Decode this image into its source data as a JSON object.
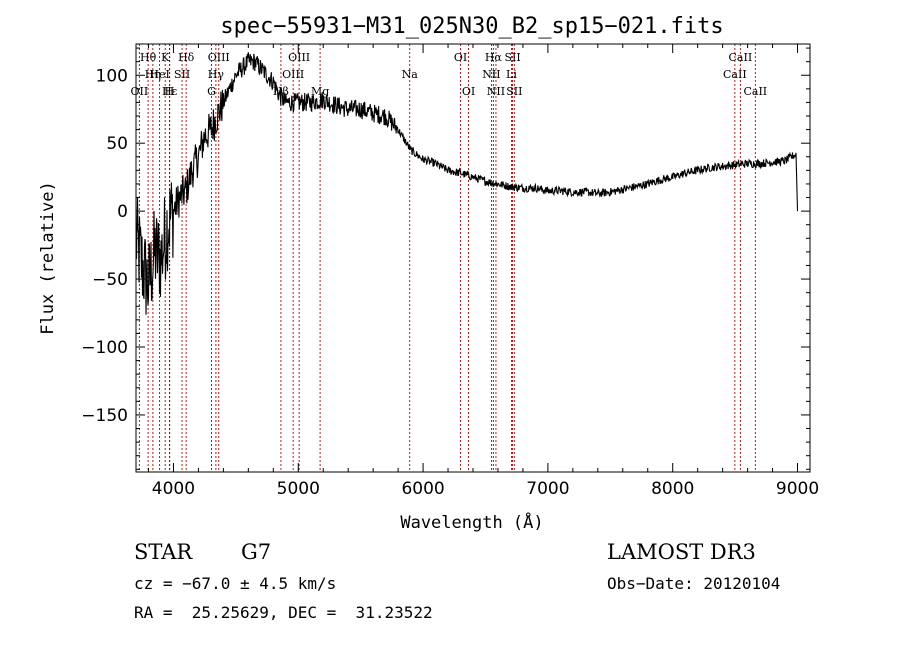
{
  "chart_data": {
    "type": "line",
    "title": "spec−55931−M31_025N30_B2_sp15−021.fits",
    "xlabel": "Wavelength (Å)",
    "ylabel": "Flux (relative)",
    "xlim": [
      3700,
      9100
    ],
    "ylim": [
      -192,
      123
    ],
    "xticks": [
      4000,
      5000,
      6000,
      7000,
      8000,
      9000
    ],
    "xtick_labels": [
      "4000",
      "5000",
      "6000",
      "7000",
      "8000",
      "9000"
    ],
    "yticks": [
      -150,
      -100,
      -50,
      0,
      50,
      100
    ],
    "ytick_labels": [
      "−150",
      "−100",
      "−50",
      "0",
      "50",
      "100"
    ],
    "spectrum_trend": {
      "x": [
        3700,
        3750,
        3800,
        3850,
        3900,
        3950,
        4000,
        4050,
        4100,
        4150,
        4200,
        4250,
        4300,
        4350,
        4400,
        4450,
        4500,
        4550,
        4600,
        4650,
        4700,
        4750,
        4800,
        4850,
        4900,
        4950,
        5000,
        5100,
        5200,
        5300,
        5400,
        5500,
        5600,
        5700,
        5800,
        5900,
        6000,
        6100,
        6200,
        6300,
        6400,
        6500,
        6600,
        6700,
        6800,
        6900,
        7000,
        7100,
        7200,
        7300,
        7400,
        7500,
        7600,
        7700,
        7800,
        7900,
        8000,
        8100,
        8200,
        8300,
        8400,
        8500,
        8600,
        8700,
        8800,
        8900,
        8950,
        8990
      ],
      "y": [
        -20,
        -40,
        -55,
        -30,
        -35,
        -10,
        0,
        10,
        15,
        30,
        40,
        55,
        60,
        70,
        80,
        90,
        100,
        105,
        110,
        110,
        105,
        100,
        95,
        85,
        80,
        80,
        80,
        80,
        82,
        78,
        75,
        75,
        72,
        70,
        60,
        45,
        38,
        35,
        30,
        28,
        25,
        22,
        20,
        18,
        17,
        17,
        15,
        15,
        14,
        14,
        13,
        14,
        16,
        18,
        20,
        23,
        25,
        28,
        30,
        32,
        33,
        34,
        35,
        35,
        36,
        37,
        40,
        42
      ]
    },
    "spectral_lines": [
      {
        "label": "Hθ",
        "x": 3797,
        "row": 0
      },
      {
        "label": "K",
        "x": 3934,
        "row": 0
      },
      {
        "label": "Hδ",
        "x": 4102,
        "row": 0
      },
      {
        "label": "OIII",
        "x": 4363,
        "row": 0
      },
      {
        "label": "OIII",
        "x": 5007,
        "row": 0
      },
      {
        "label": "OI",
        "x": 6300,
        "row": 0
      },
      {
        "label": "Hα",
        "x": 6563,
        "row": 0
      },
      {
        "label": "SII",
        "x": 6717,
        "row": 0
      },
      {
        "label": "CaII",
        "x": 8542,
        "row": 0
      },
      {
        "label": "Hη",
        "x": 3835,
        "row": 1
      },
      {
        "label": "HeI",
        "x": 3889,
        "row": 1
      },
      {
        "label": "SII",
        "x": 4069,
        "row": 1
      },
      {
        "label": "Hγ",
        "x": 4340,
        "row": 1
      },
      {
        "label": "OIII",
        "x": 4959,
        "row": 1
      },
      {
        "label": "Na",
        "x": 5893,
        "row": 1
      },
      {
        "label": "NII",
        "x": 6548,
        "row": 1
      },
      {
        "label": "Li",
        "x": 6708,
        "row": 1
      },
      {
        "label": "CaII",
        "x": 8498,
        "row": 1
      },
      {
        "label": "OII",
        "x": 3727,
        "row": 2
      },
      {
        "label": "Hε",
        "x": 3970,
        "row": 2
      },
      {
        "label": "H",
        "x": 3968,
        "row": 2
      },
      {
        "label": "G",
        "x": 4305,
        "row": 2
      },
      {
        "label": "Hβ",
        "x": 4861,
        "row": 2
      },
      {
        "label": "Mg",
        "x": 5175,
        "row": 2
      },
      {
        "label": "OI",
        "x": 6364,
        "row": 2
      },
      {
        "label": "NII",
        "x": 6584,
        "row": 2
      },
      {
        "label": "SII",
        "x": 6731,
        "row": 2
      },
      {
        "label": "CaII",
        "x": 8662,
        "row": 2
      }
    ]
  },
  "info": {
    "object_class": "STAR",
    "subclass": "G7",
    "survey": "LAMOST DR3",
    "redshift": "cz = −67.0 ± 4.5 km/s",
    "obs_date": "Obs−Date: 20120104",
    "coords": "RA =  25.25629, DEC =  31.23522"
  }
}
